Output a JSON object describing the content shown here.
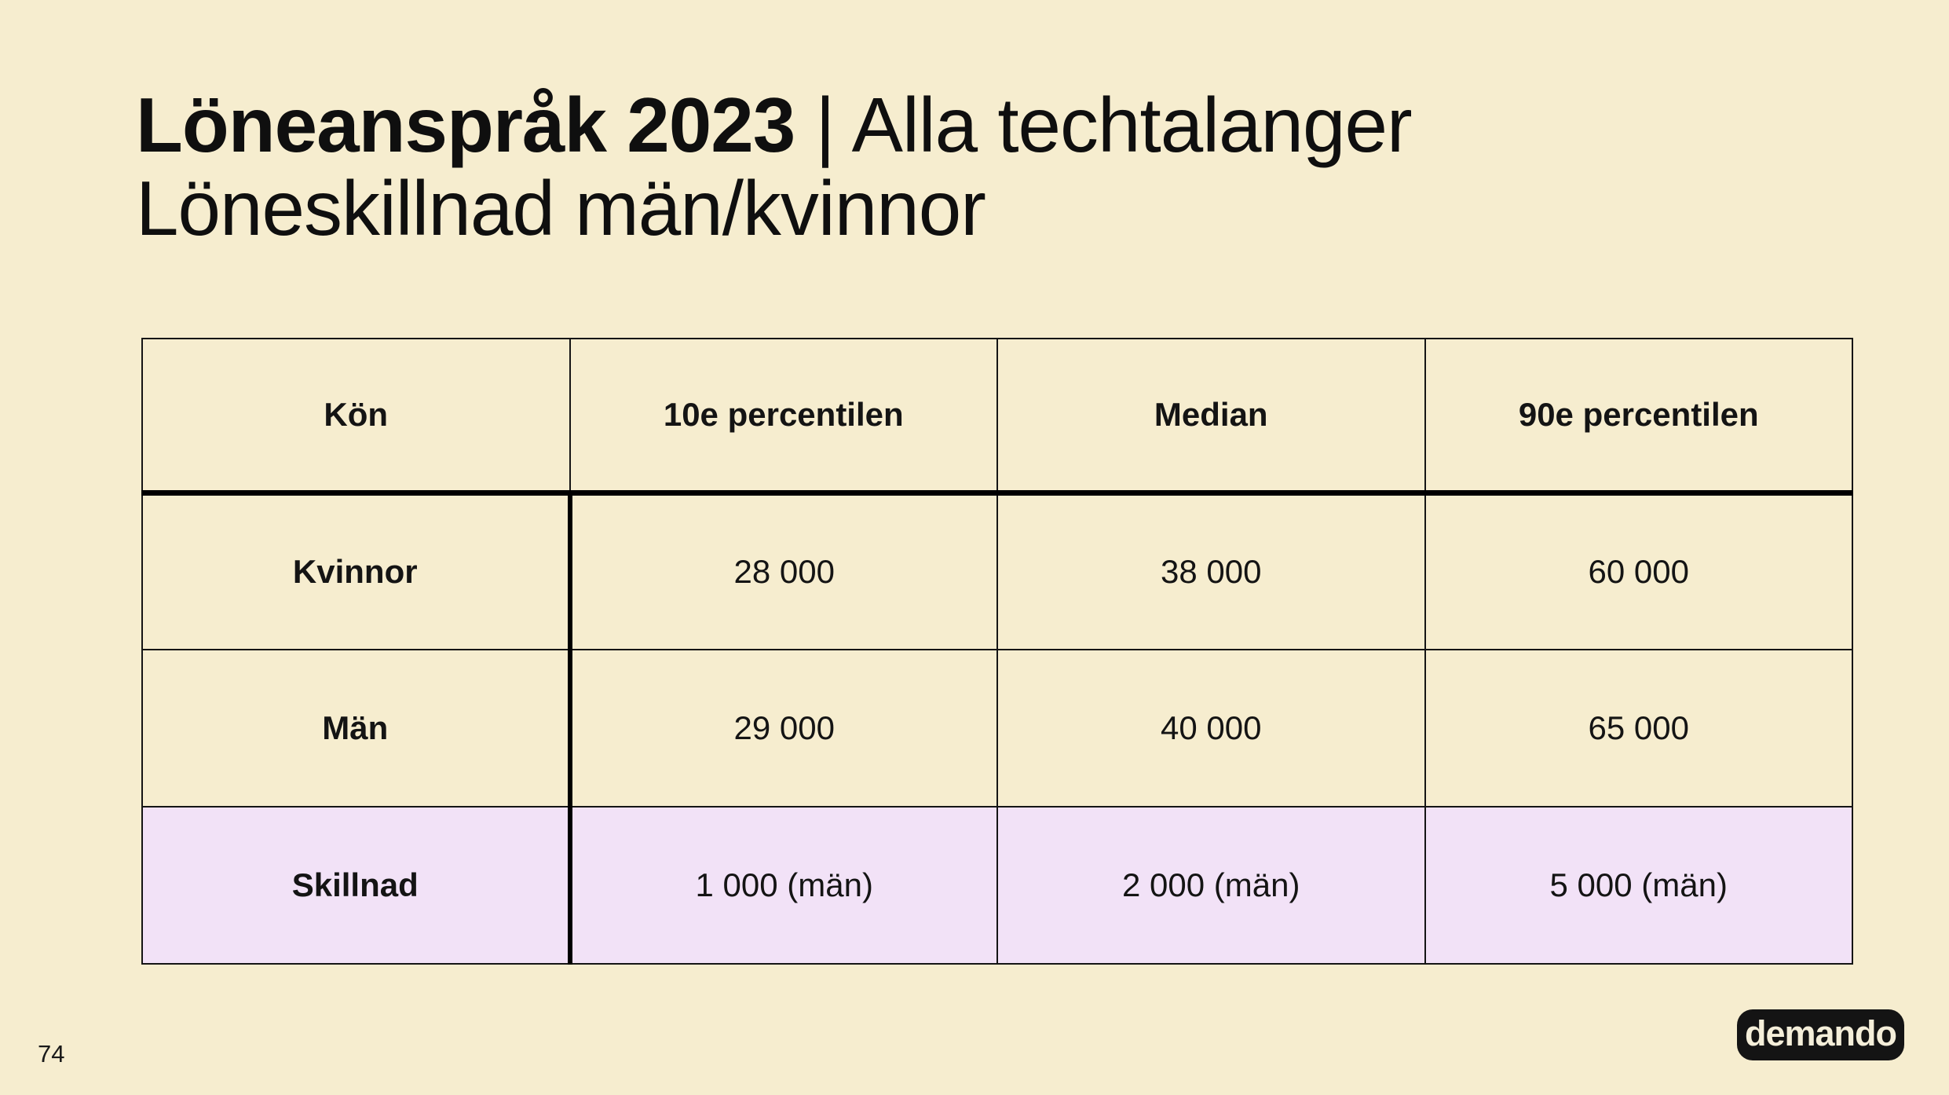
{
  "slide": {
    "title": {
      "line1_bold": "Löneanspråk 2023",
      "line1_separator": "|",
      "line1_regular": "Alla techtalanger",
      "line2": "Löneskillnad män/kvinnor"
    },
    "page_number": "74",
    "logo_text": "demando",
    "colors": {
      "background": "#f6edcf",
      "highlight_row": "#f2e2f7",
      "text": "#141414",
      "logo_background": "#141414",
      "logo_text": "#f4eed9"
    }
  },
  "table": {
    "headers": [
      "Kön",
      "10e percentilen",
      "Median",
      "90e percentilen"
    ],
    "rows": [
      {
        "label": "Kvinnor",
        "values": [
          "28 000",
          "38 000",
          "60 000"
        ],
        "highlight": false
      },
      {
        "label": "Män",
        "values": [
          "29 000",
          "40 000",
          "65 000"
        ],
        "highlight": false
      },
      {
        "label": "Skillnad",
        "values": [
          "1 000 (män)",
          "2 000 (män)",
          "5 000 (män)"
        ],
        "highlight": true
      }
    ]
  }
}
